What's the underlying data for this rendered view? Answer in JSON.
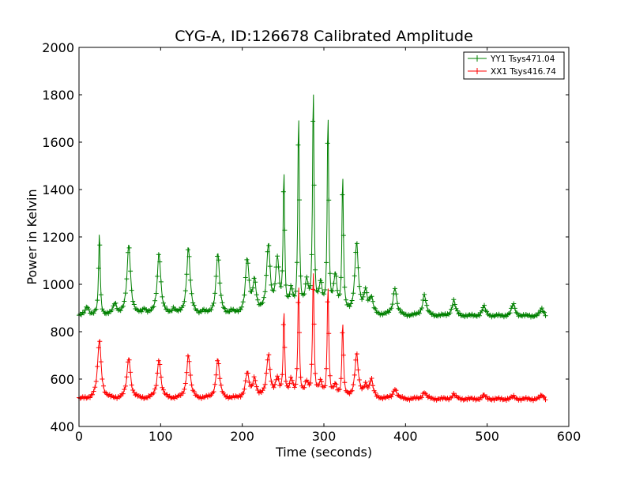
{
  "chart_data": {
    "type": "line",
    "title": "CYG-A, ID:126678 Calibrated Amplitude",
    "xlabel": "Time (seconds)",
    "ylabel": "Power in Kelvin",
    "xlim": [
      0,
      600
    ],
    "ylim": [
      400,
      2000
    ],
    "xticks": [
      0,
      100,
      200,
      300,
      400,
      500,
      600
    ],
    "yticks": [
      400,
      600,
      800,
      1000,
      1200,
      1400,
      1600,
      1800,
      2000
    ],
    "grid": false,
    "legend": "top-right",
    "marker": "plus",
    "series": [
      {
        "name": "YY1 Tsys471.04",
        "color": "#008000",
        "x_range": [
          0,
          572
        ],
        "baseline": 865,
        "peaks": [
          {
            "t": 10,
            "v": 905
          },
          {
            "t": 25,
            "v": 1225
          },
          {
            "t": 44,
            "v": 915
          },
          {
            "t": 61,
            "v": 1165
          },
          {
            "t": 80,
            "v": 890
          },
          {
            "t": 98,
            "v": 1130
          },
          {
            "t": 116,
            "v": 890
          },
          {
            "t": 134,
            "v": 1150
          },
          {
            "t": 152,
            "v": 880
          },
          {
            "t": 170,
            "v": 1125
          },
          {
            "t": 187,
            "v": 880
          },
          {
            "t": 206,
            "v": 1095
          },
          {
            "t": 215,
            "v": 1000
          },
          {
            "t": 232,
            "v": 1155
          },
          {
            "t": 243,
            "v": 1085
          },
          {
            "t": 251,
            "v": 1455
          },
          {
            "t": 260,
            "v": 955
          },
          {
            "t": 269,
            "v": 1710
          },
          {
            "t": 279,
            "v": 990
          },
          {
            "t": 287,
            "v": 1820
          },
          {
            "t": 296,
            "v": 980
          },
          {
            "t": 305,
            "v": 1705
          },
          {
            "t": 314,
            "v": 1020
          },
          {
            "t": 323,
            "v": 1445
          },
          {
            "t": 340,
            "v": 1165
          },
          {
            "t": 351,
            "v": 960
          },
          {
            "t": 358,
            "v": 930
          },
          {
            "t": 387,
            "v": 985
          },
          {
            "t": 423,
            "v": 955
          },
          {
            "t": 459,
            "v": 930
          },
          {
            "t": 496,
            "v": 905
          },
          {
            "t": 532,
            "v": 915
          },
          {
            "t": 567,
            "v": 895
          }
        ]
      },
      {
        "name": "XX1 Tsys416.74",
        "color": "#ff0000",
        "x_range": [
          0,
          572
        ],
        "baseline": 515,
        "peaks": [
          {
            "t": 25,
            "v": 765
          },
          {
            "t": 61,
            "v": 690
          },
          {
            "t": 98,
            "v": 685
          },
          {
            "t": 134,
            "v": 700
          },
          {
            "t": 170,
            "v": 680
          },
          {
            "t": 206,
            "v": 620
          },
          {
            "t": 215,
            "v": 595
          },
          {
            "t": 232,
            "v": 700
          },
          {
            "t": 243,
            "v": 590
          },
          {
            "t": 251,
            "v": 875
          },
          {
            "t": 260,
            "v": 585
          },
          {
            "t": 269,
            "v": 995
          },
          {
            "t": 279,
            "v": 575
          },
          {
            "t": 287,
            "v": 1060
          },
          {
            "t": 296,
            "v": 575
          },
          {
            "t": 305,
            "v": 995
          },
          {
            "t": 314,
            "v": 565
          },
          {
            "t": 323,
            "v": 835
          },
          {
            "t": 340,
            "v": 700
          },
          {
            "t": 351,
            "v": 565
          },
          {
            "t": 358,
            "v": 590
          },
          {
            "t": 387,
            "v": 560
          },
          {
            "t": 423,
            "v": 545
          },
          {
            "t": 459,
            "v": 535
          },
          {
            "t": 496,
            "v": 530
          },
          {
            "t": 532,
            "v": 525
          },
          {
            "t": 567,
            "v": 530
          }
        ]
      }
    ]
  }
}
